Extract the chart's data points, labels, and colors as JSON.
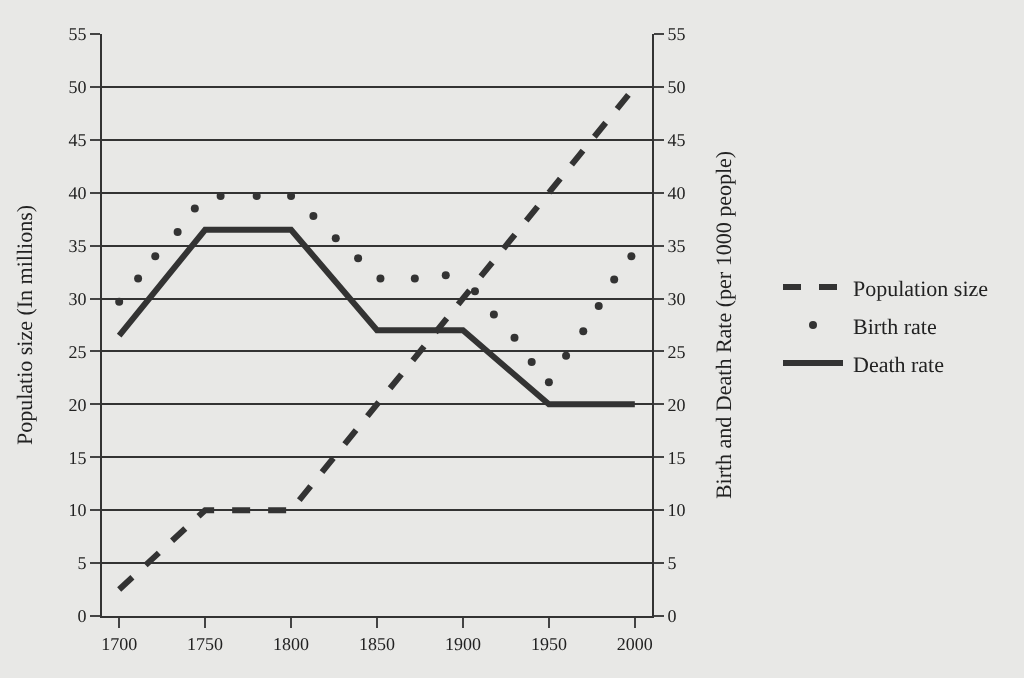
{
  "chart_data": {
    "type": "line",
    "ylabel": "Populatio size (In millions)",
    "y2label": "Birth and Death Rate (per 1000 people)",
    "xlim": [
      1690,
      2010
    ],
    "xticks": [
      1700,
      1750,
      1800,
      1850,
      1900,
      1950,
      2000
    ],
    "ylim": [
      0,
      55
    ],
    "yticks": [
      0,
      5,
      10,
      15,
      20,
      25,
      30,
      35,
      40,
      45,
      50,
      55
    ],
    "y2lim": [
      0,
      55
    ],
    "y2ticks": [
      0,
      5,
      10,
      15,
      20,
      25,
      30,
      35,
      40,
      45,
      50,
      55
    ],
    "grid": "y",
    "legend": "right",
    "series": [
      {
        "name": "Population size",
        "color": "#333333",
        "line_style": "dashed",
        "marker": "none",
        "x": [
          1700,
          1750,
          1800,
          2000
        ],
        "values": [
          2.5,
          10,
          10,
          50
        ]
      },
      {
        "name": "Birth rate",
        "color": "#333333",
        "type": "scatter",
        "marker": "circle",
        "axis": "y2",
        "x": [
          1700,
          1711,
          1721,
          1734,
          1744,
          1759,
          1780,
          1800,
          1813,
          1826,
          1839,
          1852,
          1872,
          1890,
          1907,
          1918,
          1930,
          1940,
          1950,
          1960,
          1970,
          1979,
          1988,
          1998
        ],
        "values": [
          29.7,
          31.9,
          34,
          36.3,
          38.5,
          39.7,
          39.7,
          39.7,
          37.8,
          35.7,
          33.8,
          31.9,
          31.9,
          32.2,
          30.7,
          28.5,
          26.3,
          24,
          22.1,
          24.6,
          26.9,
          29.3,
          31.8,
          34
        ]
      },
      {
        "name": "Death rate",
        "color": "#333333",
        "line_style": "solid",
        "marker": "none",
        "axis": "y2",
        "x": [
          1700,
          1750,
          1800,
          1850,
          1900,
          1950,
          2000
        ],
        "values": [
          26.5,
          36.5,
          36.5,
          27,
          27,
          20,
          20
        ]
      }
    ]
  }
}
